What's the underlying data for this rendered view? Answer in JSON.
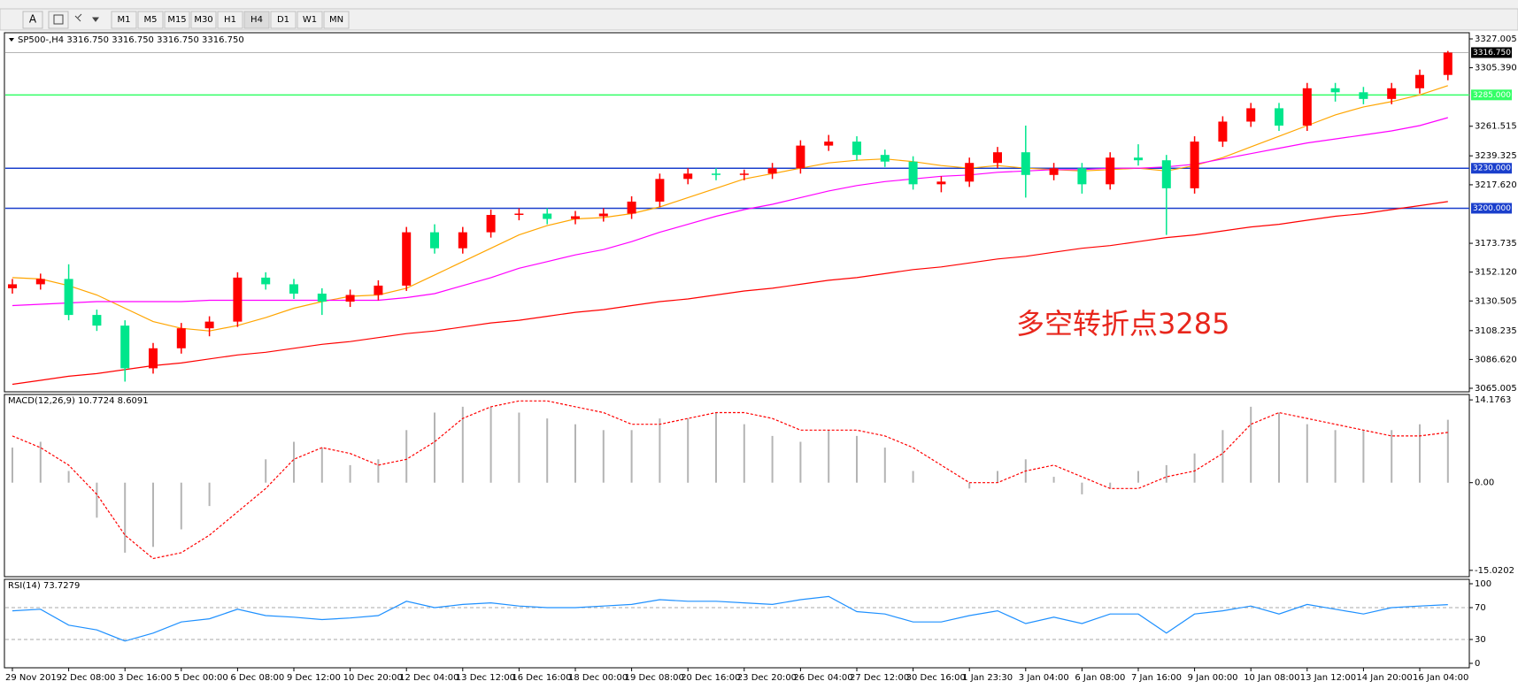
{
  "toolbar": {
    "font_button": "A",
    "timeframes": [
      "M1",
      "M5",
      "M15",
      "M30",
      "H1",
      "H4",
      "D1",
      "W1",
      "MN"
    ],
    "active": "H4"
  },
  "chart_data": [
    {
      "type": "candlestick",
      "title": "SP500-,H4 3316.750 3316.750 3316.750 3316.750",
      "categories": [
        "29 Nov 2019",
        null,
        "2 Dec 08:00",
        null,
        "3 Dec 16:00",
        null,
        "5 Dec 00:00",
        null,
        "6 Dec 08:00",
        null,
        "9 Dec 12:00",
        null,
        "10 Dec 20:00",
        null,
        "12 Dec 04:00",
        null,
        "13 Dec 12:00",
        null,
        "16 Dec 16:00",
        null,
        "18 Dec 00:00",
        null,
        "19 Dec 08:00",
        null,
        "20 Dec 16:00",
        null,
        "23 Dec 20:00",
        null,
        "26 Dec 04:00",
        null,
        "27 Dec 12:00",
        null,
        "30 Dec 16:00",
        null,
        "1 Jan 23:30",
        null,
        "3 Jan 04:00",
        null,
        "6 Jan 08:00",
        null,
        "7 Jan 16:00",
        null,
        "9 Jan 00:00",
        null,
        "10 Jan 08:00",
        null,
        "13 Jan 12:00",
        null,
        "14 Jan 20:00",
        null,
        "16 Jan 04:00",
        null
      ],
      "open": [
        3140,
        3143,
        3147,
        3120,
        3112,
        3080,
        3095,
        3110,
        3115,
        3148,
        3143,
        3136,
        3130,
        3135,
        3142,
        3182,
        3170,
        3182,
        3195,
        3196,
        3192,
        3194,
        3196,
        3205,
        3222,
        3226,
        3225,
        3226,
        3230,
        3247,
        3250,
        3240,
        3235,
        3218,
        3220,
        3234,
        3242,
        3225,
        3230,
        3218,
        3238,
        3236,
        3215,
        3250,
        3265,
        3275,
        3262,
        3290,
        3287,
        3282,
        3290,
        3300
      ],
      "high": [
        3147,
        3151,
        3158,
        3124,
        3116,
        3099,
        3114,
        3119,
        3152,
        3152,
        3147,
        3140,
        3139,
        3146,
        3186,
        3188,
        3186,
        3199,
        3200,
        3200,
        3198,
        3200,
        3209,
        3226,
        3230,
        3230,
        3229,
        3234,
        3251,
        3255,
        3254,
        3244,
        3239,
        3224,
        3238,
        3246,
        3262,
        3234,
        3234,
        3242,
        3248,
        3240,
        3254,
        3269,
        3279,
        3279,
        3294,
        3294,
        3291,
        3294,
        3304,
        3318
      ],
      "low": [
        3136,
        3139,
        3116,
        3108,
        3070,
        3076,
        3091,
        3104,
        3111,
        3139,
        3132,
        3120,
        3126,
        3131,
        3138,
        3166,
        3166,
        3178,
        3191,
        3188,
        3188,
        3190,
        3192,
        3201,
        3218,
        3221,
        3221,
        3222,
        3226,
        3243,
        3236,
        3231,
        3214,
        3212,
        3216,
        3230,
        3208,
        3221,
        3211,
        3214,
        3232,
        3180,
        3211,
        3246,
        3261,
        3258,
        3258,
        3280,
        3278,
        3278,
        3286,
        3296
      ],
      "close": [
        3143,
        3147,
        3120,
        3112,
        3080,
        3095,
        3110,
        3115,
        3148,
        3143,
        3136,
        3130,
        3135,
        3142,
        3182,
        3170,
        3182,
        3195,
        3196,
        3192,
        3194,
        3196,
        3205,
        3222,
        3226,
        3225,
        3226,
        3230,
        3247,
        3250,
        3240,
        3235,
        3218,
        3220,
        3234,
        3242,
        3225,
        3230,
        3218,
        3238,
        3236,
        3215,
        3250,
        3265,
        3275,
        3262,
        3290,
        3287,
        3282,
        3290,
        3300,
        3316.75
      ],
      "up_color": "#ff0000",
      "down_color": "#00e68c",
      "moving_averages": [
        {
          "color": "#ffa500",
          "values": [
            3148,
            3147,
            3142,
            3135,
            3125,
            3115,
            3110,
            3108,
            3112,
            3118,
            3125,
            3130,
            3134,
            3135,
            3140,
            3150,
            3160,
            3170,
            3180,
            3187,
            3192,
            3193,
            3196,
            3201,
            3208,
            3215,
            3222,
            3226,
            3230,
            3234,
            3236,
            3237,
            3235,
            3232,
            3230,
            3232,
            3230,
            3229,
            3228,
            3229,
            3230,
            3228,
            3232,
            3238,
            3246,
            3254,
            3262,
            3270,
            3276,
            3280,
            3285,
            3292
          ]
        },
        {
          "color": "#ff00ff",
          "values": [
            3127,
            3128,
            3129,
            3130,
            3130,
            3130,
            3130,
            3131,
            3131,
            3131,
            3131,
            3131,
            3131,
            3131,
            3133,
            3136,
            3142,
            3148,
            3155,
            3160,
            3165,
            3169,
            3175,
            3182,
            3188,
            3194,
            3199,
            3203,
            3208,
            3213,
            3217,
            3220,
            3222,
            3224,
            3225,
            3227,
            3228,
            3229,
            3229,
            3230,
            3230,
            3231,
            3233,
            3237,
            3241,
            3245,
            3249,
            3252,
            3255,
            3258,
            3262,
            3268
          ]
        },
        {
          "color": "#ff0000",
          "values": [
            3068,
            3071,
            3074,
            3076,
            3079,
            3082,
            3084,
            3087,
            3090,
            3092,
            3095,
            3098,
            3100,
            3103,
            3106,
            3108,
            3111,
            3114,
            3116,
            3119,
            3122,
            3124,
            3127,
            3130,
            3132,
            3135,
            3138,
            3140,
            3143,
            3146,
            3148,
            3151,
            3154,
            3156,
            3159,
            3162,
            3164,
            3167,
            3170,
            3172,
            3175,
            3178,
            3180,
            3183,
            3186,
            3188,
            3191,
            3194,
            3196,
            3199,
            3202,
            3205
          ]
        }
      ],
      "levels": [
        {
          "value": 3285,
          "label": "3285.000",
          "color": "#33ff66"
        },
        {
          "value": 3230,
          "label": "3230.000",
          "color": "#1a3fcc"
        },
        {
          "value": 3200,
          "label": "3200.000",
          "color": "#1a3fcc"
        }
      ],
      "last_price": {
        "value": 3316.75,
        "label": "3316.750"
      },
      "annotation": "多空转折点3285",
      "annotation_color": "#e8261c",
      "ylim": [
        3065.005,
        3327.005
      ],
      "yticks": [
        3327.005,
        {
          "value": 3305.39,
          "label": "3305.390"
        },
        3261.515,
        3239.325,
        {
          "value": 3217.62,
          "label": "3217.620"
        },
        3173.735,
        {
          "value": 3152.12,
          "label": "3152.120"
        },
        3130.505,
        3108.235,
        {
          "value": 3086.62,
          "label": "3086.620"
        },
        3065.005
      ]
    },
    {
      "type": "macd",
      "title": "MACD(12,26,9) 10.7724 8.6091",
      "histogram": [
        6,
        7,
        2,
        -6,
        -12,
        -11,
        -8,
        -4,
        0,
        4,
        7,
        6,
        3,
        4,
        9,
        12,
        13,
        13,
        12,
        11,
        10,
        9,
        9,
        11,
        11,
        12,
        10,
        8,
        7,
        9,
        8,
        6,
        2,
        0,
        -1,
        2,
        4,
        1,
        -2,
        -1,
        2,
        3,
        5,
        9,
        13,
        12,
        10,
        9,
        9,
        9,
        10,
        10.7724
      ],
      "signal": [
        8,
        6,
        3,
        -2,
        -9,
        -13,
        -12,
        -9,
        -5,
        -1,
        4,
        6,
        5,
        3,
        4,
        7,
        11,
        13,
        14,
        14,
        13,
        12,
        10,
        10,
        11,
        12,
        12,
        11,
        9,
        9,
        9,
        8,
        6,
        3,
        0,
        0,
        2,
        3,
        1,
        -1,
        -1,
        1,
        2,
        5,
        10,
        12,
        11,
        10,
        9,
        8,
        8,
        8.6091
      ],
      "histogram_color": "#b4b4b4",
      "signal_color": "#ff0000",
      "ylim": [
        -15.8,
        14.8
      ],
      "yticks": [
        14.1763,
        {
          "value": 0,
          "label": "0.00"
        },
        -15.0202
      ]
    },
    {
      "type": "rsi",
      "title": "RSI(14) 73.7279",
      "values": [
        66,
        68,
        48,
        42,
        28,
        38,
        52,
        56,
        68,
        60,
        58,
        55,
        57,
        60,
        78,
        70,
        74,
        76,
        72,
        70,
        70,
        72,
        74,
        80,
        78,
        78,
        76,
        74,
        80,
        84,
        65,
        62,
        52,
        52,
        60,
        66,
        50,
        58,
        50,
        62,
        62,
        38,
        62,
        66,
        72,
        62,
        74,
        68,
        62,
        70,
        72,
        73.7279
      ],
      "color": "#1e90ff",
      "levels": [
        70,
        30
      ],
      "ylim": [
        0,
        100
      ],
      "yticks": [
        100,
        70,
        30,
        0
      ]
    }
  ]
}
